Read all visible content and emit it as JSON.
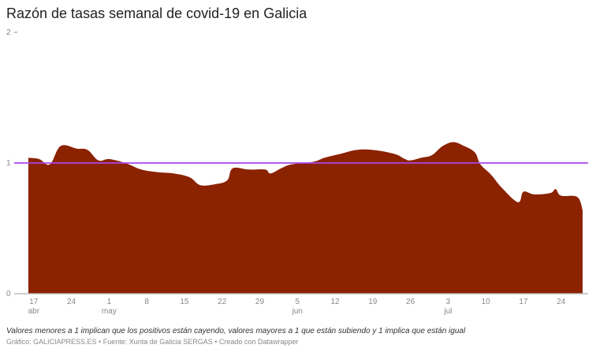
{
  "chart_data": {
    "type": "area",
    "title": "Razón de tasas semanal de covid-19 en Galicia",
    "ylim": [
      0,
      2
    ],
    "yticks": [
      "0",
      "1",
      "2"
    ],
    "reference_line": 1,
    "xlim": [
      "04-16",
      "07-28"
    ],
    "xticks": [
      {
        "date": "04-17",
        "label": "17",
        "month": "abr"
      },
      {
        "date": "04-24",
        "label": "24"
      },
      {
        "date": "05-01",
        "label": "1",
        "month": "may"
      },
      {
        "date": "05-08",
        "label": "8"
      },
      {
        "date": "05-15",
        "label": "15"
      },
      {
        "date": "05-22",
        "label": "22"
      },
      {
        "date": "05-29",
        "label": "29"
      },
      {
        "date": "06-05",
        "label": "5",
        "month": "jun"
      },
      {
        "date": "06-12",
        "label": "12"
      },
      {
        "date": "06-19",
        "label": "19"
      },
      {
        "date": "06-26",
        "label": "26"
      },
      {
        "date": "07-03",
        "label": "3",
        "month": "jul"
      },
      {
        "date": "07-10",
        "label": "10"
      },
      {
        "date": "07-17",
        "label": "17"
      },
      {
        "date": "07-24",
        "label": "24"
      }
    ],
    "points": [
      [
        "04-16",
        1.04
      ],
      [
        "04-18",
        1.03
      ],
      [
        "04-20",
        0.99
      ],
      [
        "04-22",
        1.13
      ],
      [
        "04-25",
        1.11
      ],
      [
        "04-27",
        1.1
      ],
      [
        "04-29",
        1.02
      ],
      [
        "05-01",
        1.03
      ],
      [
        "05-04",
        1.0
      ],
      [
        "05-07",
        0.95
      ],
      [
        "05-10",
        0.93
      ],
      [
        "05-13",
        0.92
      ],
      [
        "05-16",
        0.89
      ],
      [
        "05-18",
        0.83
      ],
      [
        "05-21",
        0.84
      ],
      [
        "05-23",
        0.87
      ],
      [
        "05-24",
        0.96
      ],
      [
        "05-27",
        0.95
      ],
      [
        "05-30",
        0.95
      ],
      [
        "05-31",
        0.92
      ],
      [
        "06-02",
        0.96
      ],
      [
        "06-04",
        0.99
      ],
      [
        "06-08",
        1.01
      ],
      [
        "06-10",
        1.04
      ],
      [
        "06-13",
        1.07
      ],
      [
        "06-16",
        1.1
      ],
      [
        "06-19",
        1.1
      ],
      [
        "06-23",
        1.07
      ],
      [
        "06-25",
        1.03
      ],
      [
        "06-26",
        1.02
      ],
      [
        "06-28",
        1.04
      ],
      [
        "06-30",
        1.06
      ],
      [
        "07-02",
        1.13
      ],
      [
        "07-04",
        1.16
      ],
      [
        "07-06",
        1.13
      ],
      [
        "07-08",
        1.08
      ],
      [
        "07-09",
        0.99
      ],
      [
        "07-11",
        0.91
      ],
      [
        "07-13",
        0.81
      ],
      [
        "07-16",
        0.7
      ],
      [
        "07-17",
        0.78
      ],
      [
        "07-19",
        0.76
      ],
      [
        "07-22",
        0.77
      ],
      [
        "07-23",
        0.8
      ],
      [
        "07-24",
        0.75
      ],
      [
        "07-27",
        0.74
      ],
      [
        "07-28",
        0.64
      ]
    ],
    "colors": {
      "area": "#8b2200",
      "reference": "#a846e6",
      "axis": "#bbbbbb",
      "text": "#888888"
    }
  },
  "notes": "Valores menores a 1 implican que los positivos están cayendo, valores mayores a 1 que están subiendo y 1 implica que están igual",
  "credit": "Gráfico: GALICIAPRESS.ES • Fuente: Xunta de Galicia SERGAS • Creado con Datawrapper"
}
